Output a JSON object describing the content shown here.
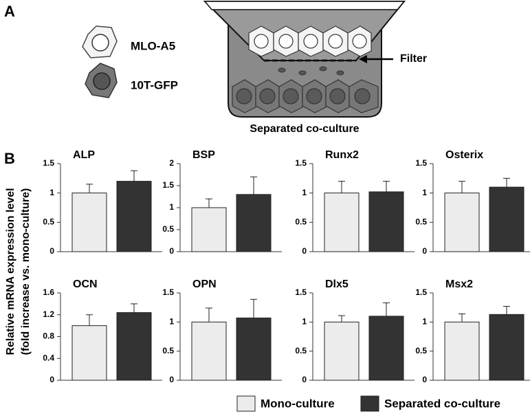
{
  "panel_a": {
    "label": "A",
    "cells": [
      "MLO-A5",
      "10T-GFP"
    ],
    "filter_label": "Filter",
    "caption": "Separated co-culture"
  },
  "panel_b_label": "B",
  "y_axis_label": [
    "Relative mRNA expression level",
    "(fold increase vs. mono-culture)"
  ],
  "legend": [
    {
      "name": "Mono-culture",
      "color": "#ececec"
    },
    {
      "name": "Separated co-culture",
      "color": "#333333"
    }
  ],
  "chart_data": [
    {
      "type": "bar",
      "title": "ALP",
      "values": [
        1.0,
        1.2
      ],
      "errors": [
        0.15,
        0.18
      ],
      "ylim": [
        0,
        1.5
      ],
      "yticks": [
        0,
        0.5,
        1,
        1.5
      ]
    },
    {
      "type": "bar",
      "title": "BSP",
      "values": [
        1.0,
        1.3
      ],
      "errors": [
        0.2,
        0.4
      ],
      "ylim": [
        0,
        2
      ],
      "yticks": [
        0,
        0.5,
        1,
        1.5,
        2
      ]
    },
    {
      "type": "bar",
      "title": "Runx2",
      "values": [
        1.0,
        1.02
      ],
      "errors": [
        0.2,
        0.18
      ],
      "ylim": [
        0,
        1.5
      ],
      "yticks": [
        0,
        0.5,
        1,
        1.5
      ]
    },
    {
      "type": "bar",
      "title": "Osterix",
      "values": [
        1.0,
        1.1
      ],
      "errors": [
        0.2,
        0.15
      ],
      "ylim": [
        0,
        1.5
      ],
      "yticks": [
        0,
        0.5,
        1,
        1.5
      ]
    },
    {
      "type": "bar",
      "title": "OCN",
      "values": [
        1.0,
        1.24
      ],
      "errors": [
        0.2,
        0.16
      ],
      "ylim": [
        0,
        1.6
      ],
      "yticks": [
        0,
        0.4,
        0.8,
        1.2,
        1.6
      ]
    },
    {
      "type": "bar",
      "title": "OPN",
      "values": [
        1.0,
        1.07
      ],
      "errors": [
        0.24,
        0.32
      ],
      "ylim": [
        0,
        1.5
      ],
      "yticks": [
        0,
        0.5,
        1,
        1.5
      ]
    },
    {
      "type": "bar",
      "title": "Dlx5",
      "values": [
        1.0,
        1.1
      ],
      "errors": [
        0.11,
        0.23
      ],
      "ylim": [
        0,
        1.5
      ],
      "yticks": [
        0,
        0.5,
        1,
        1.5
      ]
    },
    {
      "type": "bar",
      "title": "Msx2",
      "values": [
        1.0,
        1.13
      ],
      "errors": [
        0.14,
        0.14
      ],
      "ylim": [
        0,
        1.5
      ],
      "yticks": [
        0,
        0.5,
        1,
        1.5
      ]
    }
  ]
}
